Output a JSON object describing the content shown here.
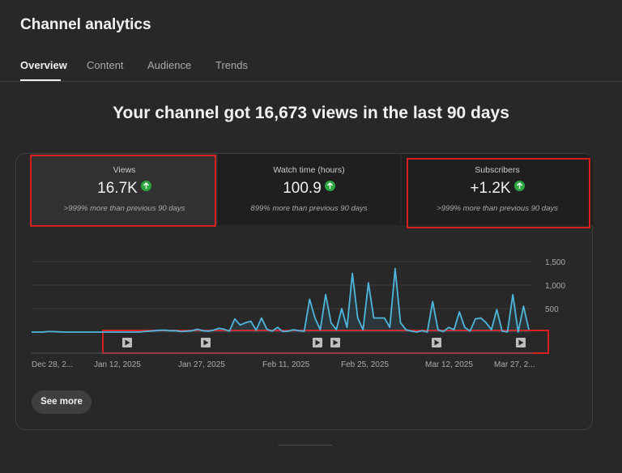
{
  "page_title": "Channel analytics",
  "tabs": [
    {
      "label": "Overview",
      "active": true
    },
    {
      "label": "Content",
      "active": false
    },
    {
      "label": "Audience",
      "active": false
    },
    {
      "label": "Trends",
      "active": false
    }
  ],
  "headline": "Your channel got 16,673 views in the last 90 days",
  "metrics": [
    {
      "label": "Views",
      "value": "16.7K",
      "comparison": ">999% more than previous 90 days",
      "trend_icon": "arrow-up-icon"
    },
    {
      "label": "Watch time (hours)",
      "value": "100.9",
      "comparison": "899% more than previous 90 days",
      "trend_icon": "arrow-up-icon"
    },
    {
      "label": "Subscribers",
      "value": "+1.2K",
      "comparison": ">999% more than previous 90 days",
      "trend_icon": "arrow-up-icon"
    }
  ],
  "see_more_label": "See more",
  "colors": {
    "line": "#4fb7dd",
    "trend_up": "#2ba640",
    "highlight_box": "#d61f1f"
  },
  "chart_data": {
    "type": "area",
    "series": [
      {
        "values": [
          0,
          0,
          0,
          10,
          10,
          5,
          0,
          0,
          0,
          0,
          0,
          0,
          0,
          0,
          0,
          0,
          0,
          0,
          0,
          0,
          0,
          10,
          20,
          30,
          40,
          40,
          30,
          30,
          10,
          20,
          30,
          60,
          30,
          20,
          40,
          80,
          60,
          20,
          280,
          150,
          200,
          230,
          40,
          300,
          60,
          20,
          100,
          10,
          20,
          50,
          30,
          20,
          700,
          300,
          50,
          800,
          200,
          50,
          500,
          100,
          1250,
          300,
          50,
          1050,
          300,
          300,
          300,
          100,
          1350,
          200,
          50,
          20,
          0,
          30,
          0,
          650,
          50,
          10,
          100,
          50,
          430,
          100,
          20,
          280,
          300,
          200,
          50,
          480,
          20,
          0,
          800,
          0,
          550,
          50
        ]
      }
    ],
    "y_ticks": [
      "1,500",
      "1,000",
      "500"
    ],
    "ylim": [
      0,
      1600
    ],
    "x_tick_labels": [
      "Dec 28, 2...",
      "Jan 12, 2025",
      "Jan 27, 2025",
      "Feb 11, 2025",
      "Feb 25, 2025",
      "Mar 12, 2025",
      "Mar 27, 2..."
    ],
    "grid": true,
    "video_markers": 6
  }
}
